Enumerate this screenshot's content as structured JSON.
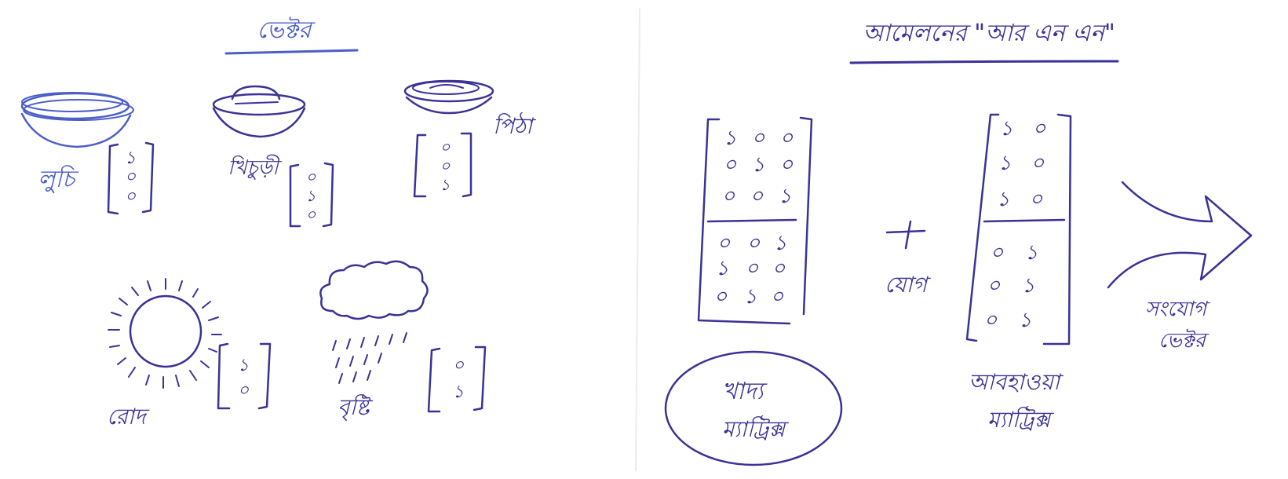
{
  "left_panel": {
    "title": "ভেক্টর",
    "items": {
      "luchi": {
        "label": "লুচি",
        "vector": [
          "১",
          "০",
          "০"
        ]
      },
      "khichuri": {
        "label": "খিচুড়ী",
        "vector": [
          "০",
          "১",
          "০"
        ]
      },
      "pitha": {
        "label": "পিঠা",
        "vector": [
          "০",
          "০",
          "১"
        ]
      },
      "rod": {
        "label": "রোদ",
        "vector": [
          "১",
          "০"
        ]
      },
      "brishti": {
        "label": "বৃষ্টি",
        "vector": [
          "০",
          "১"
        ]
      }
    }
  },
  "right_panel": {
    "title": "আমেলনের \"আর এন এন\"",
    "food_matrix": {
      "rows": [
        [
          "১",
          "০",
          "০"
        ],
        [
          "০",
          "১",
          "০"
        ],
        [
          "০",
          "০",
          "১"
        ],
        [
          "০",
          "০",
          "১"
        ],
        [
          "১",
          "০",
          "০"
        ],
        [
          "০",
          "১",
          "০"
        ]
      ],
      "caption_line1": "খাদ্য",
      "caption_line2": "ম্যাট্রিক্স"
    },
    "plus_label": "যোগ",
    "weather_matrix": {
      "rows": [
        [
          "১",
          "০"
        ],
        [
          "১",
          "০"
        ],
        [
          "১",
          "০"
        ],
        [
          "০",
          "১"
        ],
        [
          "০",
          "১"
        ],
        [
          "০",
          "১"
        ]
      ],
      "caption_line1": "আবহাওয়া",
      "caption_line2": "ম্যাট্রিক্স"
    },
    "result_label_line1": "সংযোগ",
    "result_label_line2": "ভেক্টর"
  },
  "colors": {
    "ink": "#3a3296",
    "blue_ink": "#4b5ec8",
    "paper": "#ffffff"
  }
}
